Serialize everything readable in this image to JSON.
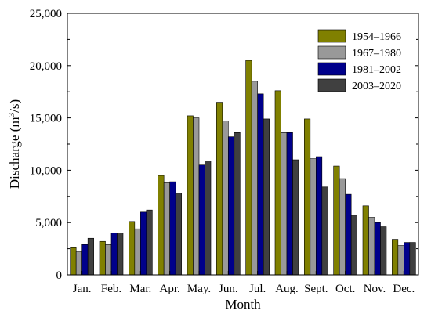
{
  "chart_data": {
    "type": "bar",
    "categories": [
      "Jan.",
      "Feb.",
      "Mar.",
      "Apr.",
      "May.",
      "Jun.",
      "Jul.",
      "Aug.",
      "Sept.",
      "Oct.",
      "Nov.",
      "Dec."
    ],
    "series": [
      {
        "name": "1954–1966",
        "color": "#808000",
        "values": [
          2600,
          3200,
          5100,
          9500,
          15200,
          16500,
          20500,
          17600,
          14900,
          10400,
          6600,
          3400
        ]
      },
      {
        "name": "1967–1980",
        "color": "#999999",
        "values": [
          2200,
          2900,
          4400,
          8800,
          15000,
          14700,
          18500,
          13600,
          11100,
          9200,
          5500,
          2800
        ]
      },
      {
        "name": "1981–2002",
        "color": "#00008b",
        "values": [
          2900,
          4000,
          6000,
          8900,
          10500,
          13200,
          17300,
          13600,
          11300,
          7700,
          5000,
          3100
        ]
      },
      {
        "name": "2003–2020",
        "color": "#404040",
        "values": [
          3500,
          4000,
          6200,
          7800,
          10900,
          13600,
          14900,
          11000,
          8400,
          5700,
          4600,
          3100
        ]
      }
    ],
    "xlabel": "Month",
    "ylabel_main": "Discharge (m",
    "ylabel_sup": "3",
    "ylabel_tail": "/s)",
    "ylim": [
      0,
      25000
    ],
    "yticks": [
      "0",
      "5,000",
      "10,000",
      "15,000",
      "20,000",
      "25,000"
    ],
    "ytick_values": [
      0,
      5000,
      10000,
      15000,
      20000,
      25000
    ],
    "grid": false,
    "legend_position": "top-right"
  }
}
